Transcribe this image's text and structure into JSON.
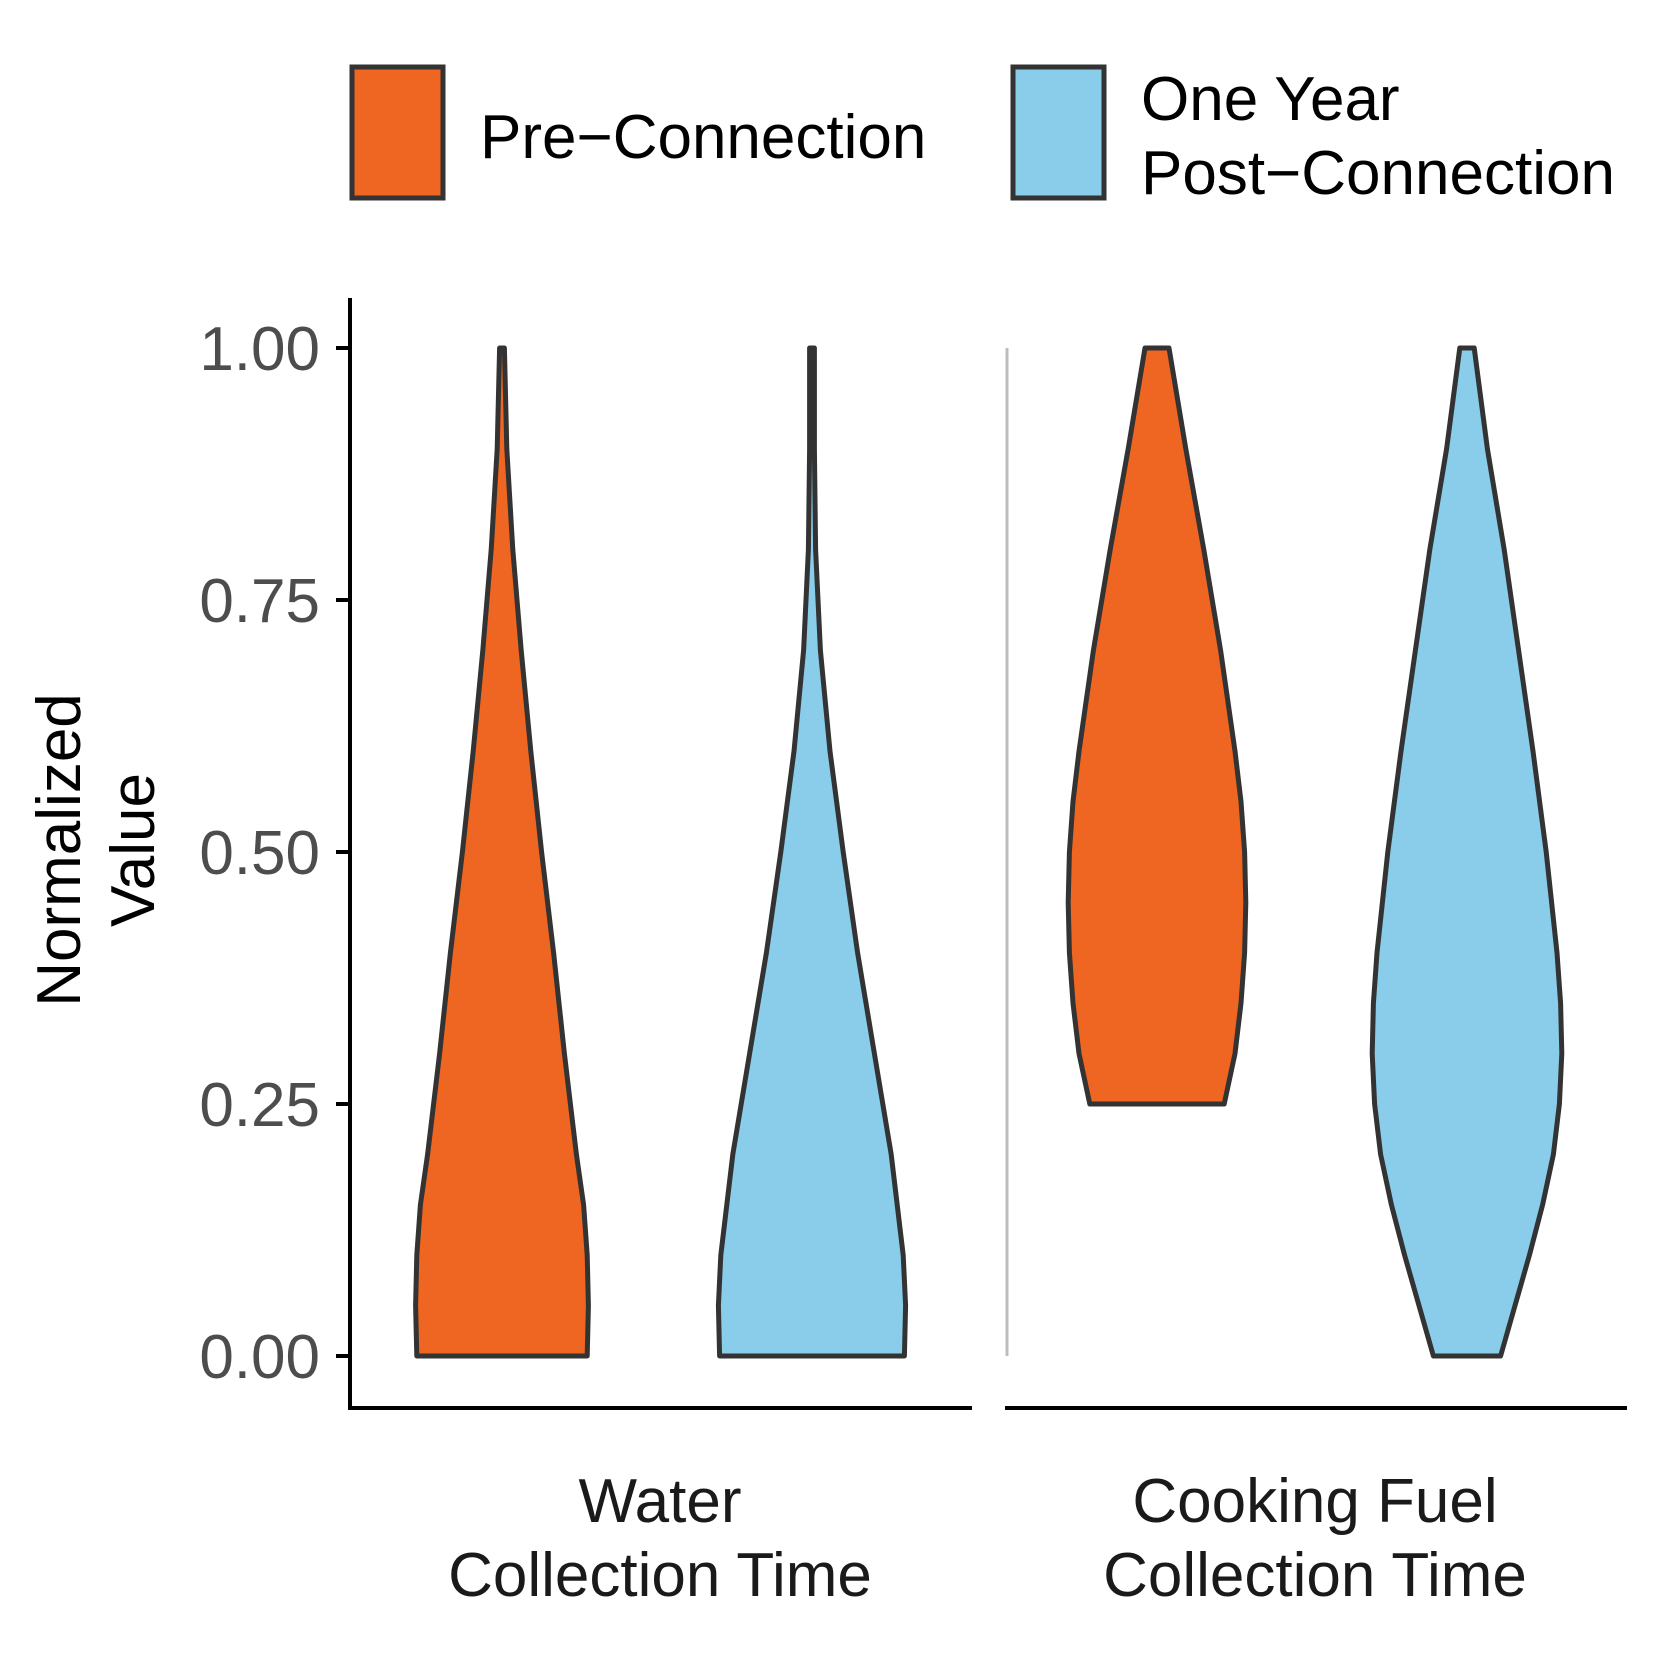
{
  "chart_data": {
    "type": "violin",
    "title": "",
    "xlabel": "",
    "ylabel_lines": [
      "Normalized",
      "Value"
    ],
    "ylim": [
      0,
      1
    ],
    "yticks": [
      "0.00",
      "0.25",
      "0.50",
      "0.75",
      "1.00"
    ],
    "categories": [
      {
        "lines": [
          "Water",
          "Collection Time"
        ]
      },
      {
        "lines": [
          "Cooking Fuel",
          "Collection Time"
        ]
      }
    ],
    "series": [
      {
        "legend_lines": [
          "Pre−Connection"
        ],
        "color": "#ee6622",
        "violins": [
          {
            "min": 0.0,
            "max": 1.0,
            "profile": [
              [
                0.0,
                0.71
              ],
              [
                0.05,
                0.72
              ],
              [
                0.1,
                0.71
              ],
              [
                0.15,
                0.68
              ],
              [
                0.2,
                0.62
              ],
              [
                0.3,
                0.52
              ],
              [
                0.4,
                0.43
              ],
              [
                0.5,
                0.33
              ],
              [
                0.6,
                0.24
              ],
              [
                0.7,
                0.16
              ],
              [
                0.8,
                0.09
              ],
              [
                0.9,
                0.04
              ],
              [
                1.0,
                0.02
              ]
            ]
          },
          {
            "min": 0.25,
            "max": 1.0,
            "profile": [
              [
                0.25,
                0.56
              ],
              [
                0.3,
                0.65
              ],
              [
                0.35,
                0.7
              ],
              [
                0.4,
                0.73
              ],
              [
                0.45,
                0.74
              ],
              [
                0.5,
                0.73
              ],
              [
                0.55,
                0.7
              ],
              [
                0.6,
                0.65
              ],
              [
                0.7,
                0.53
              ],
              [
                0.8,
                0.39
              ],
              [
                0.9,
                0.24
              ],
              [
                1.0,
                0.1
              ]
            ]
          }
        ]
      },
      {
        "legend_lines": [
          "One Year",
          "Post−Connection"
        ],
        "color": "#89cdea",
        "violins": [
          {
            "min": 0.0,
            "max": 1.0,
            "profile": [
              [
                0.0,
                0.77
              ],
              [
                0.05,
                0.78
              ],
              [
                0.1,
                0.76
              ],
              [
                0.2,
                0.66
              ],
              [
                0.3,
                0.52
              ],
              [
                0.4,
                0.38
              ],
              [
                0.5,
                0.26
              ],
              [
                0.6,
                0.15
              ],
              [
                0.7,
                0.07
              ],
              [
                0.8,
                0.03
              ],
              [
                0.9,
                0.02
              ],
              [
                1.0,
                0.02
              ]
            ]
          },
          {
            "min": 0.0,
            "max": 1.0,
            "profile": [
              [
                0.0,
                0.28
              ],
              [
                0.05,
                0.4
              ],
              [
                0.1,
                0.52
              ],
              [
                0.15,
                0.63
              ],
              [
                0.2,
                0.72
              ],
              [
                0.25,
                0.77
              ],
              [
                0.3,
                0.79
              ],
              [
                0.35,
                0.78
              ],
              [
                0.4,
                0.75
              ],
              [
                0.5,
                0.66
              ],
              [
                0.6,
                0.55
              ],
              [
                0.7,
                0.43
              ],
              [
                0.8,
                0.31
              ],
              [
                0.9,
                0.17
              ],
              [
                1.0,
                0.06
              ]
            ]
          }
        ]
      }
    ],
    "legend_position": "top",
    "grid": false,
    "facet_divider": true
  }
}
